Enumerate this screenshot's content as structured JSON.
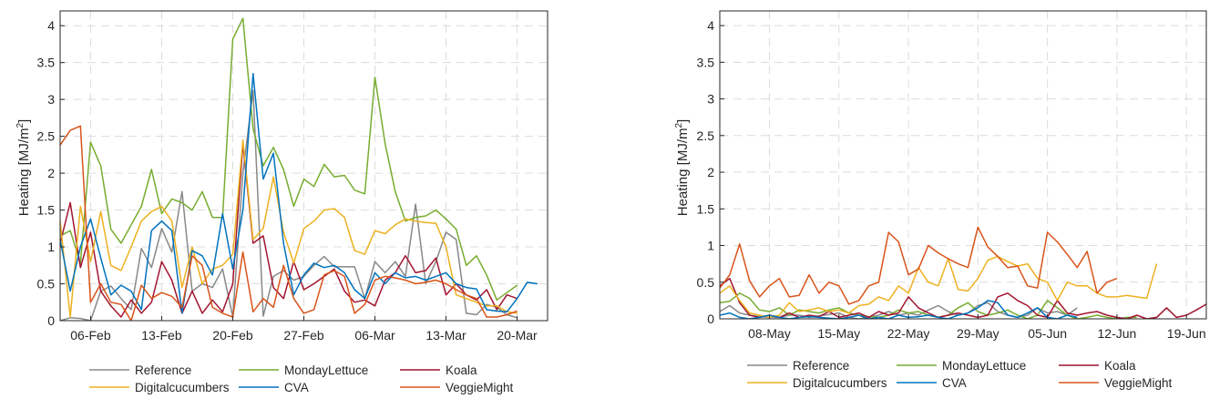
{
  "chart_data": [
    {
      "type": "line",
      "ylabel_main": "Heating [MJ/m",
      "ylabel_sup": "2",
      "ylabel_end": "]",
      "ylim": [
        0,
        4.2
      ],
      "yticks": [
        0,
        0.5,
        1,
        1.5,
        2,
        2.5,
        3,
        3.5,
        4
      ],
      "ytick_labels": [
        "0",
        "0.5",
        "1",
        "1.5",
        "2",
        "2.5",
        "3",
        "3.5",
        "4"
      ],
      "xlim": [
        "2023-02-03",
        "2023-03-23"
      ],
      "xticks": [
        "2023-02-06",
        "2023-02-13",
        "2023-02-20",
        "2023-02-27",
        "2023-03-06",
        "2023-03-13",
        "2023-03-20"
      ],
      "xtick_labels": [
        "06-Feb",
        "13-Feb",
        "20-Feb",
        "27-Feb",
        "06-Mar",
        "13-Mar",
        "20-Mar"
      ],
      "grid": true,
      "legend_position": "bottom",
      "series": [
        {
          "name": "Reference",
          "color": "#888888",
          "start": "2023-02-03",
          "values": [
            0.0,
            0.04,
            0.03,
            0.0,
            0.4,
            0.47,
            0.3,
            0.15,
            0.98,
            0.72,
            1.25,
            0.93,
            1.75,
            0.4,
            0.5,
            0.45,
            0.7,
            0.05,
            2.0,
            3.12,
            0.06,
            0.6,
            0.68,
            0.55,
            0.6,
            0.75,
            0.87,
            0.73,
            0.73,
            0.73,
            0.3,
            0.8,
            0.65,
            0.8,
            0.6,
            1.58,
            0.5,
            0.8,
            1.2,
            1.1,
            0.1,
            0.08,
            0.22,
            0.18,
            0.08,
            0.04
          ]
        },
        {
          "name": "MondayLettuce",
          "color": "#77ac30",
          "start": "2023-02-03",
          "values": [
            1.15,
            1.22,
            0.78,
            2.42,
            2.1,
            1.24,
            1.05,
            1.3,
            1.55,
            2.05,
            1.45,
            1.65,
            1.6,
            1.5,
            1.75,
            1.4,
            1.4,
            3.82,
            4.1,
            2.6,
            2.1,
            2.35,
            2.05,
            1.55,
            1.92,
            1.82,
            2.12,
            1.95,
            1.97,
            1.77,
            1.72,
            3.3,
            2.4,
            1.75,
            1.35,
            1.4,
            1.42,
            1.5,
            1.38,
            1.24,
            0.75,
            0.88,
            0.62,
            0.28,
            0.38,
            0.48
          ]
        },
        {
          "name": "Koala",
          "color": "#a2142f",
          "start": "2023-02-03",
          "values": [
            1.05,
            1.6,
            0.72,
            1.2,
            0.4,
            0.2,
            0.05,
            0.28,
            0.1,
            0.25,
            0.8,
            0.55,
            0.1,
            0.4,
            0.1,
            0.28,
            0.12,
            0.5,
            2.4,
            1.05,
            1.15,
            0.45,
            0.3,
            0.8,
            0.42,
            0.5,
            0.6,
            0.7,
            0.4,
            0.25,
            0.28,
            0.2,
            0.55,
            0.65,
            0.88,
            0.65,
            0.68,
            0.85,
            0.35,
            0.5,
            0.35,
            0.28,
            0.42,
            0.15,
            0.35,
            0.3
          ]
        },
        {
          "name": "Digitalcucumbers",
          "color": "#edb120",
          "start": "2023-02-03",
          "values": [
            1.35,
            0.05,
            1.55,
            0.8,
            1.48,
            0.75,
            0.68,
            1.0,
            1.35,
            1.48,
            1.55,
            1.35,
            0.45,
            1.0,
            0.5,
            0.7,
            0.75,
            0.9,
            2.45,
            1.1,
            1.25,
            1.95,
            1.2,
            0.78,
            1.25,
            1.35,
            1.5,
            1.52,
            1.4,
            0.95,
            0.9,
            1.22,
            1.18,
            1.3,
            1.38,
            1.35,
            1.33,
            1.32,
            1.0,
            0.35,
            0.3,
            0.25,
            0.2,
            0.2,
            0.12,
            0.1
          ]
        },
        {
          "name": "CVA",
          "color": "#0072bd",
          "start": "2023-02-03",
          "values": [
            1.1,
            0.4,
            1.0,
            1.38,
            0.85,
            0.35,
            0.48,
            0.4,
            0.15,
            1.22,
            1.35,
            1.22,
            0.1,
            0.95,
            0.88,
            0.62,
            1.45,
            0.7,
            1.5,
            3.35,
            1.92,
            2.27,
            1.05,
            0.35,
            0.62,
            0.78,
            0.72,
            0.75,
            0.65,
            0.42,
            0.3,
            0.65,
            0.5,
            0.65,
            0.58,
            0.6,
            0.55,
            0.6,
            0.65,
            0.5,
            0.45,
            0.43,
            0.15,
            0.13,
            0.12,
            0.3,
            0.52,
            0.5
          ]
        },
        {
          "name": "VeggieMight",
          "color": "#d95319",
          "start": "2023-02-03",
          "values": [
            2.38,
            2.58,
            2.64,
            0.25,
            0.5,
            0.25,
            0.22,
            0.0,
            0.48,
            0.3,
            0.38,
            0.33,
            0.18,
            0.88,
            0.75,
            0.18,
            0.1,
            0.05,
            0.93,
            0.12,
            0.3,
            0.18,
            0.75,
            0.3,
            0.1,
            0.15,
            0.62,
            0.68,
            0.6,
            0.1,
            0.22,
            0.55,
            0.6,
            0.58,
            0.55,
            0.5,
            0.52,
            0.55,
            0.5,
            0.42,
            0.35,
            0.3,
            0.05,
            0.05,
            0.08,
            0.13
          ]
        }
      ]
    },
    {
      "type": "line",
      "ylabel_main": "Heating [MJ/m",
      "ylabel_sup": "2",
      "ylabel_end": "]",
      "ylim": [
        0,
        4.2
      ],
      "yticks": [
        0,
        0.5,
        1,
        1.5,
        2,
        2.5,
        3,
        3.5,
        4
      ],
      "ytick_labels": [
        "0",
        "0.5",
        "1",
        "1.5",
        "2",
        "2.5",
        "3",
        "3.5",
        "4"
      ],
      "xlim": [
        "2023-05-03",
        "2023-06-21"
      ],
      "xticks": [
        "2023-05-08",
        "2023-05-15",
        "2023-05-22",
        "2023-05-29",
        "2023-06-05",
        "2023-06-12",
        "2023-06-19"
      ],
      "xtick_labels": [
        "08-May",
        "15-May",
        "22-May",
        "29-May",
        "05-Jun",
        "12-Jun",
        "19-Jun"
      ],
      "grid": true,
      "legend_position": "bottom",
      "series": [
        {
          "name": "Reference",
          "color": "#888888",
          "start": "2023-05-03",
          "values": [
            0.1,
            0.18,
            0.08,
            0.05,
            0.03,
            0.02,
            0.02,
            0.05,
            0.05,
            0.02,
            0.04,
            0.06,
            0.08,
            0.02,
            0.0,
            0.02,
            0.05,
            0.1,
            0.05,
            0.08,
            0.05,
            0.12,
            0.18,
            0.1,
            0.05,
            0.08,
            0.18,
            0.22,
            0.1,
            0.05,
            0.02,
            0.05,
            0.15,
            0.08,
            0.1,
            0.05,
            0.15
          ]
        },
        {
          "name": "MondayLettuce",
          "color": "#77ac30",
          "start": "2023-05-03",
          "values": [
            0.22,
            0.24,
            0.35,
            0.28,
            0.12,
            0.1,
            0.15,
            0.05,
            0.12,
            0.1,
            0.08,
            0.12,
            0.15,
            0.08,
            0.05,
            0.03,
            0.02,
            0.05,
            0.12,
            0.08,
            0.1,
            0.05,
            0.02,
            0.05,
            0.15,
            0.22,
            0.1,
            0.05,
            0.08,
            0.12,
            0.05,
            0.0,
            0.05,
            0.25,
            0.15,
            0.05,
            0.0,
            0.02,
            0.05,
            0.02,
            0.0,
            0.02,
            0.02
          ]
        },
        {
          "name": "Koala",
          "color": "#a2142f",
          "start": "2023-05-03",
          "values": [
            0.45,
            0.55,
            0.22,
            0.05,
            0.02,
            0.05,
            0.02,
            0.08,
            0.02,
            0.05,
            0.03,
            0.1,
            0.02,
            0.05,
            0.08,
            0.02,
            0.1,
            0.05,
            0.08,
            0.3,
            0.15,
            0.08,
            0.02,
            0.05,
            0.08,
            0.05,
            0.02,
            0.05,
            0.3,
            0.35,
            0.25,
            0.18,
            0.05,
            0.02,
            0.25,
            0.08,
            0.05,
            0.08,
            0.1,
            0.05,
            0.02,
            0.0,
            0.05,
            0.0,
            0.02,
            0.15,
            0.02,
            0.05,
            0.12,
            0.2,
            0.05
          ]
        },
        {
          "name": "Digitalcucumbers",
          "color": "#edb120",
          "start": "2023-05-03",
          "values": [
            0.35,
            0.45,
            0.25,
            0.08,
            0.05,
            0.02,
            0.05,
            0.22,
            0.1,
            0.12,
            0.15,
            0.1,
            0.12,
            0.08,
            0.18,
            0.2,
            0.3,
            0.25,
            0.45,
            0.35,
            0.7,
            0.5,
            0.45,
            0.82,
            0.4,
            0.38,
            0.55,
            0.8,
            0.85,
            0.78,
            0.72,
            0.75,
            0.55,
            0.5,
            0.25,
            0.5,
            0.45,
            0.45,
            0.35,
            0.3,
            0.3,
            0.32,
            0.3,
            0.28,
            0.75
          ]
        },
        {
          "name": "CVA",
          "color": "#0072bd",
          "start": "2023-05-03",
          "values": [
            0.05,
            0.08,
            0.02,
            0.0,
            0.02,
            0.05,
            0.02,
            0.0,
            0.02,
            0.03,
            0.02,
            0.01,
            0.0,
            0.02,
            0.05,
            0.0,
            0.02,
            0.0,
            0.05,
            0.02,
            0.03,
            0.05,
            0.02,
            0.0,
            0.05,
            0.08,
            0.15,
            0.25,
            0.22,
            0.05,
            0.02,
            0.08,
            0.15,
            0.02,
            0.0,
            0.05,
            0.02
          ]
        },
        {
          "name": "VeggieMight",
          "color": "#d95319",
          "start": "2023-05-03",
          "values": [
            0.42,
            0.6,
            1.02,
            0.52,
            0.3,
            0.45,
            0.55,
            0.3,
            0.32,
            0.6,
            0.35,
            0.5,
            0.45,
            0.2,
            0.25,
            0.45,
            0.5,
            1.18,
            1.05,
            0.6,
            0.68,
            1.0,
            0.9,
            0.82,
            0.75,
            0.7,
            1.25,
            0.98,
            0.85,
            0.7,
            0.72,
            0.45,
            0.42,
            1.18,
            1.05,
            0.88,
            0.7,
            0.92,
            0.35,
            0.5,
            0.55
          ]
        }
      ]
    }
  ]
}
